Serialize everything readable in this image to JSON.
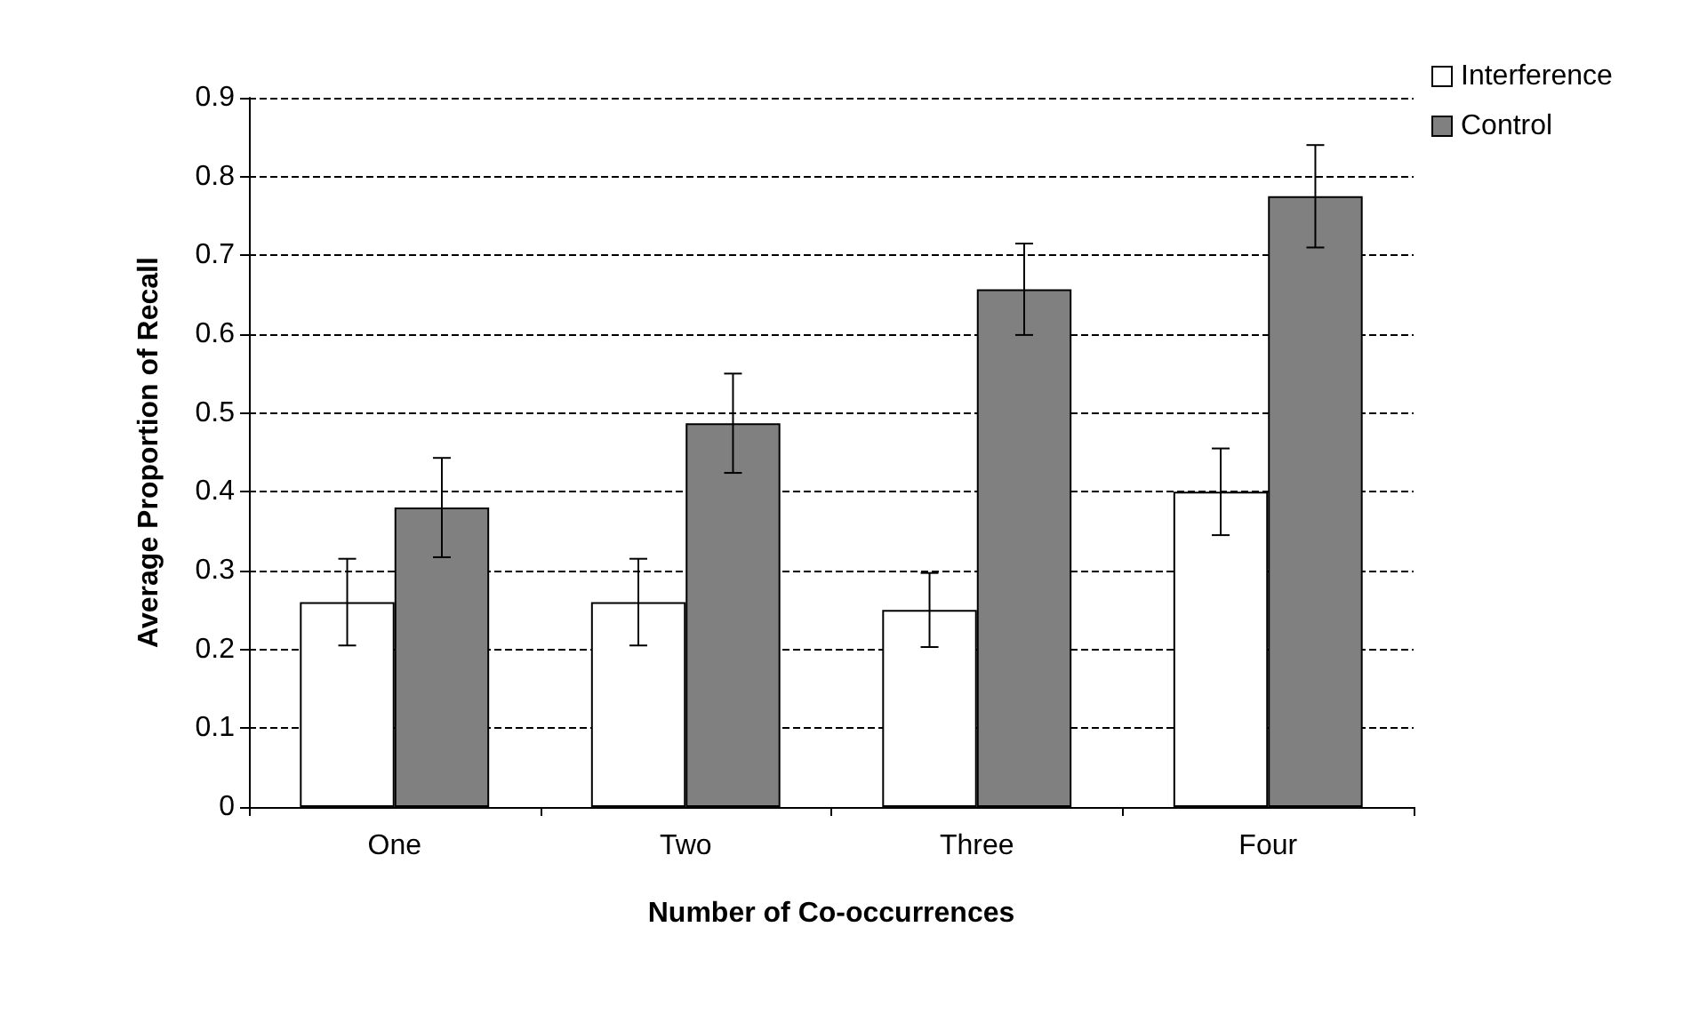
{
  "chart_data": {
    "type": "bar",
    "xlabel": "Number of Co-occurrences",
    "ylabel": "Average Proportion of Recall",
    "categories": [
      "One",
      "Two",
      "Three",
      "Four"
    ],
    "series": [
      {
        "name": "Interference",
        "color": "#ffffff",
        "values": [
          0.26,
          0.26,
          0.25,
          0.4
        ],
        "errors": [
          0.055,
          0.055,
          0.047,
          0.055
        ]
      },
      {
        "name": "Control",
        "color": "#808080",
        "values": [
          0.38,
          0.487,
          0.657,
          0.775
        ],
        "errors": [
          0.063,
          0.063,
          0.058,
          0.065
        ]
      }
    ],
    "ylim": [
      0,
      0.9
    ],
    "yticks": [
      0,
      0.1,
      0.2,
      0.3,
      0.4,
      0.5,
      0.6,
      0.7,
      0.8,
      0.9
    ],
    "grid": "y",
    "legend": "top right"
  }
}
